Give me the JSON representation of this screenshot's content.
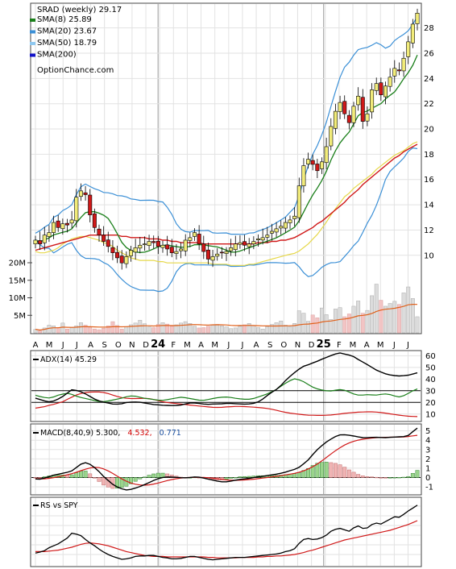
{
  "chart_data": [
    {
      "type": "candlestick",
      "title": "SRAD (weekly) 29.17",
      "watermark": "OptionChance.com",
      "y_ticks": [
        "10",
        "12",
        "14",
        "16",
        "18",
        "20",
        "22",
        "24",
        "26",
        "28"
      ],
      "ylim": [
        8.2,
        29.7
      ],
      "legend": [
        {
          "label": "SMA(8) 25.89",
          "color": "#1a7f1a"
        },
        {
          "label": "SMA(20) 23.67",
          "color": "#3a8fd6"
        },
        {
          "label": "SMA(50) 18.79",
          "color": "#8ec8f0"
        },
        {
          "label": "SMA(200)",
          "color": "#1010c8"
        }
      ],
      "x_labels": [
        "A",
        "M",
        "J",
        "J",
        "A",
        "S",
        "O",
        "N",
        "D",
        "24",
        "F",
        "M",
        "A",
        "M",
        "J",
        "J",
        "A",
        "S",
        "O",
        "N",
        "D",
        "25",
        "F",
        "M",
        "A",
        "M",
        "J",
        "J"
      ],
      "close": [
        11.2,
        10.9,
        11.6,
        11.8,
        12.6,
        12.2,
        12.5,
        12.4,
        12.8,
        14.6,
        15.1,
        14.8,
        13.2,
        12.2,
        11.6,
        11.1,
        10.7,
        10.2,
        9.8,
        9.4,
        9.9,
        10.4,
        10.6,
        10.8,
        10.9,
        11.1,
        11.0,
        10.7,
        10.8,
        10.5,
        10.2,
        10.3,
        10.5,
        11.2,
        11.4,
        11.8,
        10.9,
        10.3,
        9.7,
        9.9,
        10.1,
        10.2,
        10.3,
        10.6,
        10.9,
        11.0,
        10.8,
        10.9,
        11.1,
        11.3,
        11.4,
        11.6,
        11.9,
        12.1,
        12.3,
        12.6,
        12.8,
        13.1,
        15.5,
        17.1,
        17.6,
        17.2,
        16.7,
        17.4,
        18.6,
        20.2,
        21.4,
        22.1,
        21.2,
        20.5,
        21.8,
        22.6,
        20.6,
        21.2,
        23.1,
        23.6,
        22.7,
        23.4,
        24.1,
        24.8,
        24.6,
        25.6,
        26.9,
        28.3,
        29.17
      ],
      "sma20": [
        11.5,
        11.4,
        11.4,
        11.5,
        11.6,
        11.8,
        12.1,
        12.3,
        12.5,
        12.6,
        12.7,
        12.7,
        12.6,
        12.5,
        12.4,
        12.2,
        12.1,
        11.9,
        11.6,
        11.4,
        11.2,
        11.0,
        10.9,
        10.8,
        10.8,
        10.8,
        10.8,
        10.7,
        10.7,
        10.6,
        10.6,
        10.6,
        10.6,
        10.6,
        10.6,
        10.6,
        10.6,
        10.6,
        10.6,
        10.5,
        10.5,
        10.5,
        10.5,
        10.4,
        10.4,
        10.4,
        10.4,
        10.5,
        10.5,
        10.6,
        10.7,
        10.8,
        10.9,
        11.0,
        11.1,
        11.2,
        11.4,
        11.6,
        11.9,
        12.3,
        12.7,
        13.2,
        13.7,
        14.3,
        14.9,
        15.6,
        16.2,
        16.8,
        17.4,
        17.8,
        18.3,
        18.7,
        19.1,
        19.5,
        19.9,
        20.4,
        20.8,
        21.2,
        21.6,
        22.0,
        22.3,
        22.6,
        23.0,
        23.4,
        23.67
      ],
      "sma50": [
        10.4,
        10.5,
        10.6,
        10.7,
        10.8,
        10.9,
        11.0,
        11.1,
        11.2,
        11.3,
        11.4,
        11.5,
        11.6,
        11.6,
        11.6,
        11.6,
        11.6,
        11.6,
        11.6,
        11.5,
        11.5,
        11.4,
        11.4,
        11.4,
        11.4,
        11.3,
        11.3,
        11.3,
        11.2,
        11.2,
        11.1,
        11.1,
        11.0,
        11.0,
        11.0,
        11.0,
        11.0,
        10.9,
        10.9,
        10.9,
        10.9,
        10.9,
        10.9,
        10.9,
        10.9,
        10.9,
        10.9,
        10.9,
        10.9,
        11.0,
        11.0,
        11.0,
        11.1,
        11.1,
        11.2,
        11.2,
        11.3,
        11.4,
        11.6,
        11.8,
        12.0,
        12.2,
        12.5,
        12.7,
        13.0,
        13.3,
        13.6,
        13.9,
        14.2,
        14.6,
        14.9,
        15.2,
        15.6,
        15.9,
        16.2,
        16.5,
        16.8,
        17.1,
        17.4,
        17.7,
        17.9,
        18.2,
        18.4,
        18.6,
        18.79
      ],
      "vol_axis": [
        "5M",
        "10M",
        "15M",
        "20M"
      ],
      "volume": [
        1.0,
        0.6,
        1.4,
        2.2,
        2.0,
        1.5,
        2.8,
        1.1,
        1.5,
        2.0,
        2.9,
        2.2,
        1.6,
        1.1,
        0.9,
        1.3,
        2.0,
        3.2,
        2.1,
        1.1,
        1.7,
        2.3,
        2.8,
        3.6,
        2.6,
        1.7,
        1.5,
        2.4,
        2.9,
        2.5,
        1.9,
        2.3,
        2.8,
        3.2,
        2.7,
        1.9,
        1.4,
        1.5,
        1.9,
        2.2,
        2.4,
        2.0,
        1.7,
        1.2,
        1.4,
        1.9,
        2.3,
        2.7,
        2.1,
        1.5,
        1.1,
        1.8,
        2.4,
        2.9,
        3.4,
        2.2,
        1.8,
        2.7,
        6.3,
        5.6,
        3.3,
        5.1,
        4.3,
        7.1,
        5.2,
        3.8,
        6.8,
        7.2,
        4.6,
        5.4,
        7.6,
        9.1,
        5.6,
        6.4,
        10.6,
        13.9,
        9.3,
        7.6,
        8.4,
        9.0,
        8.1,
        11.4,
        13.1,
        9.8,
        4.6
      ]
    },
    {
      "type": "line",
      "title": "ADX(14) 45.29",
      "y_ticks": [
        "10",
        "20",
        "30",
        "40",
        "50",
        "60"
      ],
      "ylim": [
        5,
        63
      ],
      "adx": [
        23.6,
        22.5,
        21.3,
        20.5,
        21.2,
        22.9,
        25.1,
        27.9,
        30.8,
        30.3,
        29.1,
        27.3,
        25.1,
        22.9,
        21.3,
        20.2,
        19.4,
        18.6,
        18.5,
        18.9,
        19.9,
        20.2,
        20.3,
        20.1,
        19.4,
        18.9,
        18.2,
        17.9,
        17.6,
        17.4,
        17.3,
        17.4,
        17.8,
        18.7,
        19.4,
        19.4,
        19.1,
        18.6,
        18.3,
        18.6,
        18.7,
        18.8,
        19.1,
        19.1,
        18.9,
        18.7,
        18.5,
        18.7,
        19.2,
        20.5,
        22.8,
        25.9,
        28.7,
        31.1,
        34.5,
        38.7,
        42.3,
        45.5,
        48.5,
        51.0,
        52.2,
        53.8,
        55.3,
        57.0,
        58.5,
        60.1,
        61.5,
        62.3,
        61.4,
        60.5,
        59.2,
        56.8,
        54.6,
        52.4,
        50.0,
        47.7,
        46.0,
        44.5,
        43.5,
        43.0,
        42.6,
        42.9,
        43.3,
        44.3,
        45.29
      ],
      "di_plus": [
        26.1,
        25.0,
        24.2,
        23.8,
        24.7,
        26.2,
        27.1,
        27.8,
        26.9,
        25.4,
        24.2,
        23.4,
        22.5,
        21.6,
        20.8,
        20.7,
        21.2,
        22.0,
        22.8,
        23.7,
        24.8,
        25.5,
        25.3,
        24.4,
        23.5,
        23.0,
        22.5,
        21.9,
        21.8,
        22.3,
        23.1,
        23.8,
        24.4,
        24.0,
        23.3,
        22.6,
        21.9,
        21.8,
        22.5,
        23.3,
        24.0,
        24.4,
        24.6,
        24.2,
        23.5,
        23.0,
        22.7,
        22.7,
        23.4,
        24.6,
        25.9,
        27.3,
        29.2,
        31.2,
        33.8,
        36.4,
        38.6,
        40.2,
        39.3,
        37.7,
        35.3,
        33.1,
        31.6,
        30.6,
        29.9,
        29.8,
        30.5,
        31.0,
        30.4,
        28.9,
        27.2,
        26.3,
        26.3,
        26.6,
        26.4,
        26.3,
        26.9,
        27.2,
        26.7,
        25.5,
        24.7,
        25.8,
        27.7,
        29.9,
        31.5
      ],
      "di_minus": [
        15.1,
        15.7,
        16.3,
        17.5,
        18.3,
        19.4,
        20.6,
        22.6,
        24.5,
        26.4,
        27.6,
        28.4,
        28.8,
        28.9,
        28.9,
        28.5,
        27.6,
        26.3,
        25.1,
        24.1,
        23.5,
        23.3,
        23.3,
        23.4,
        23.5,
        23.2,
        22.5,
        21.5,
        20.6,
        19.9,
        19.4,
        19.0,
        18.6,
        18.2,
        17.7,
        17.3,
        16.9,
        16.5,
        16.1,
        15.8,
        15.7,
        15.8,
        16.1,
        16.3,
        16.5,
        16.5,
        16.4,
        16.2,
        15.9,
        15.6,
        15.3,
        14.8,
        14.1,
        13.2,
        12.3,
        11.5,
        10.8,
        10.3,
        9.8,
        9.4,
        9.1,
        9.0,
        8.9,
        8.9,
        9.0,
        9.2,
        9.6,
        10.1,
        10.6,
        11.0,
        11.3,
        11.6,
        11.8,
        11.9,
        11.9,
        11.7,
        11.3,
        10.8,
        10.2,
        9.6,
        9.1,
        8.6,
        8.2,
        8.0,
        7.8
      ]
    },
    {
      "type": "line",
      "title": "MACD(8,40,9) 5.300,",
      "signal_value": "4.532,",
      "histogram_value": "0.771",
      "y_ticks": [
        "-1",
        "0",
        "1",
        "2",
        "3",
        "4",
        "5"
      ],
      "ylim": [
        -1.6,
        5.4
      ],
      "macd": [
        -0.16,
        -0.18,
        -0.05,
        0.09,
        0.25,
        0.35,
        0.46,
        0.56,
        0.71,
        1.07,
        1.43,
        1.59,
        1.42,
        1.06,
        0.63,
        0.11,
        -0.32,
        -0.73,
        -1.01,
        -1.21,
        -1.33,
        -1.27,
        -1.13,
        -0.96,
        -0.76,
        -0.54,
        -0.31,
        -0.12,
        0.01,
        0.06,
        0.05,
        0.02,
        -0.02,
        -0.03,
        0.01,
        0.06,
        0.03,
        -0.06,
        -0.17,
        -0.28,
        -0.38,
        -0.46,
        -0.46,
        -0.38,
        -0.29,
        -0.2,
        -0.15,
        -0.09,
        -0.01,
        0.08,
        0.14,
        0.21,
        0.28,
        0.36,
        0.46,
        0.58,
        0.73,
        0.87,
        1.1,
        1.48,
        1.89,
        2.46,
        2.99,
        3.42,
        3.81,
        4.12,
        4.4,
        4.57,
        4.59,
        4.53,
        4.45,
        4.35,
        4.28,
        4.27,
        4.3,
        4.31,
        4.29,
        4.28,
        4.31,
        4.34,
        4.36,
        4.39,
        4.51,
        4.92,
        5.3
      ],
      "signal": [
        -0.13,
        -0.14,
        -0.14,
        -0.09,
        -0.01,
        0.08,
        0.18,
        0.29,
        0.41,
        0.56,
        0.73,
        0.89,
        1.02,
        1.09,
        1.06,
        0.92,
        0.71,
        0.44,
        0.14,
        -0.15,
        -0.4,
        -0.59,
        -0.72,
        -0.8,
        -0.82,
        -0.79,
        -0.7,
        -0.59,
        -0.46,
        -0.33,
        -0.22,
        -0.13,
        -0.06,
        -0.02,
        0.01,
        0.02,
        0.02,
        0.01,
        -0.02,
        -0.07,
        -0.14,
        -0.2,
        -0.26,
        -0.29,
        -0.3,
        -0.29,
        -0.26,
        -0.22,
        -0.18,
        -0.12,
        -0.06,
        0.0,
        0.07,
        0.13,
        0.2,
        0.28,
        0.36,
        0.45,
        0.57,
        0.72,
        0.92,
        1.16,
        1.45,
        1.79,
        2.15,
        2.52,
        2.88,
        3.2,
        3.48,
        3.71,
        3.88,
        4.01,
        4.1,
        4.17,
        4.23,
        4.28,
        4.3,
        4.31,
        4.32,
        4.33,
        4.34,
        4.35,
        4.4,
        4.47,
        4.53
      ],
      "histogram": [
        -0.03,
        -0.04,
        0.09,
        0.18,
        0.26,
        0.27,
        0.28,
        0.27,
        0.3,
        0.51,
        0.7,
        0.7,
        0.4,
        -0.03,
        -0.43,
        -0.81,
        -1.03,
        -1.17,
        -1.15,
        -1.06,
        -0.93,
        -0.68,
        -0.41,
        -0.16,
        0.06,
        0.25,
        0.39,
        0.47,
        0.47,
        0.39,
        0.27,
        0.15,
        0.04,
        -0.01,
        0.0,
        0.04,
        0.01,
        -0.07,
        -0.15,
        -0.21,
        -0.24,
        -0.26,
        -0.2,
        -0.09,
        0.01,
        0.09,
        0.11,
        0.13,
        0.17,
        0.2,
        0.2,
        0.21,
        0.21,
        0.23,
        0.26,
        0.3,
        0.37,
        0.42,
        0.53,
        0.76,
        0.97,
        1.3,
        1.54,
        1.63,
        1.66,
        1.6,
        1.52,
        1.37,
        1.11,
        0.82,
        0.57,
        0.34,
        0.18,
        0.1,
        0.07,
        0.03,
        -0.01,
        -0.03,
        -0.01,
        0.01,
        0.02,
        0.04,
        0.11,
        0.45,
        0.77
      ]
    },
    {
      "type": "line",
      "title": "RS vs SPY",
      "rs": [
        43,
        45,
        48,
        54,
        58,
        62,
        68,
        74,
        84,
        82,
        79,
        71,
        64,
        58,
        51,
        45,
        40,
        36,
        33,
        30,
        31,
        33,
        36,
        37,
        37,
        38,
        38,
        36,
        34,
        33,
        31,
        31,
        32,
        34,
        36,
        36,
        34,
        32,
        30,
        29,
        30,
        31,
        32,
        33,
        34,
        34,
        34,
        35,
        36,
        37,
        38,
        39,
        40,
        41,
        43,
        46,
        48,
        52,
        63,
        71,
        73,
        71,
        72,
        75,
        80,
        88,
        92,
        94,
        91,
        88,
        95,
        99,
        94,
        95,
        102,
        105,
        103,
        108,
        113,
        118,
        117,
        123,
        130,
        136,
        142
      ],
      "rs_sma": [
        46,
        46,
        46,
        47,
        48,
        49,
        51,
        53,
        55,
        58,
        61,
        63,
        64,
        63,
        62,
        60,
        58,
        55,
        52,
        49,
        46,
        44,
        42,
        40,
        38,
        37,
        36,
        36,
        36,
        35,
        35,
        35,
        35,
        35,
        35,
        35,
        35,
        35,
        34,
        34,
        33,
        33,
        33,
        33,
        33,
        34,
        34,
        34,
        34,
        35,
        35,
        36,
        36,
        37,
        37,
        38,
        39,
        40,
        42,
        44,
        47,
        49,
        52,
        55,
        58,
        61,
        64,
        67,
        70,
        72,
        74,
        76,
        78,
        80,
        82,
        84,
        86,
        88,
        90,
        93,
        96,
        99,
        102,
        106,
        110
      ]
    }
  ]
}
